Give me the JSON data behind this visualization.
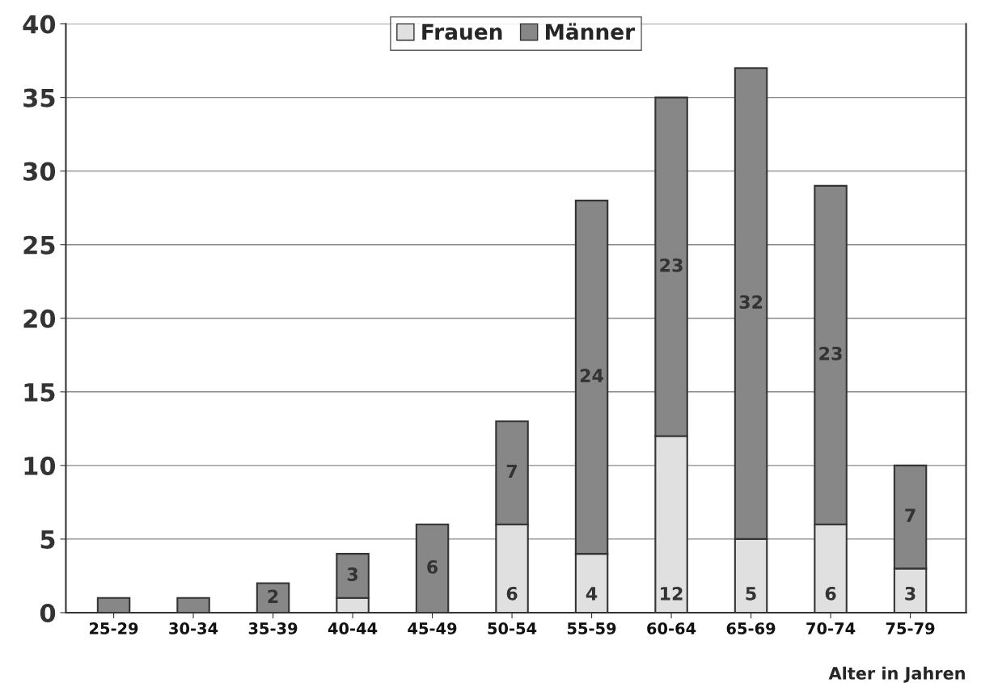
{
  "chart_data": {
    "type": "bar",
    "stacked": true,
    "xlabel": "Alter in Jahren",
    "categories": [
      "25-29",
      "30-34",
      "35-39",
      "40-44",
      "45-49",
      "50-54",
      "55-59",
      "60-64",
      "65-69",
      "70-74",
      "75-79"
    ],
    "series": [
      {
        "name": "Frauen",
        "color": "#e0e0e0",
        "values": [
          0,
          0,
          0,
          1,
          0,
          6,
          4,
          12,
          5,
          6,
          3
        ],
        "value_labels": [
          null,
          null,
          null,
          null,
          null,
          "6",
          "4",
          "12",
          "5",
          "6",
          "3"
        ]
      },
      {
        "name": "Männer",
        "color": "#878787",
        "values": [
          1,
          1,
          2,
          3,
          6,
          7,
          24,
          23,
          32,
          23,
          7
        ],
        "value_labels": [
          null,
          null,
          "2",
          "3",
          "6",
          "7",
          "24",
          "23",
          "32",
          "23",
          "7"
        ]
      }
    ],
    "ylim": [
      0,
      40
    ],
    "yticks": [
      0,
      5,
      10,
      15,
      20,
      25,
      30,
      35,
      40
    ],
    "grid": "y",
    "legend": "top"
  }
}
